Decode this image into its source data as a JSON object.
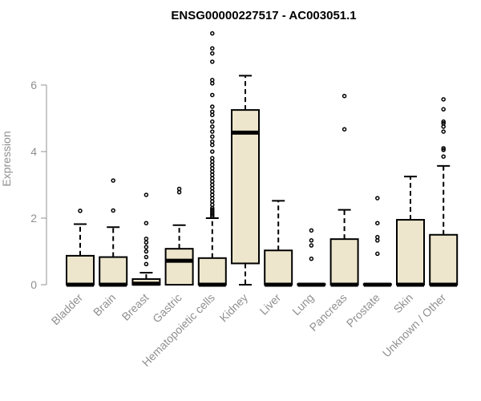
{
  "chart_data": {
    "type": "box",
    "title": "ENSG00000227517 - AC003051.1",
    "xlabel": "",
    "ylabel": "Expression",
    "ylim": [
      0,
      7.5
    ],
    "yticks": [
      0,
      2,
      4,
      6
    ],
    "categories": [
      "Bladder",
      "Brain",
      "Breast",
      "Gastric",
      "Hematopoietic cells",
      "Kidney",
      "Liver",
      "Lung",
      "Pancreas",
      "Prostate",
      "Skin",
      "Unknown / Other"
    ],
    "boxes": [
      {
        "category": "Bladder",
        "q1": 0,
        "median": 0,
        "q3": 0.87,
        "whisker_low": 0,
        "whisker_high": 1.82,
        "outliers": [
          2.22
        ]
      },
      {
        "category": "Brain",
        "q1": 0,
        "median": 0,
        "q3": 0.83,
        "whisker_low": 0,
        "whisker_high": 1.73,
        "outliers": [
          2.23,
          3.13
        ]
      },
      {
        "category": "Breast",
        "q1": 0,
        "median": 0.03,
        "q3": 0.17,
        "whisker_low": 0,
        "whisker_high": 0.36,
        "outliers": [
          0.62,
          0.83,
          1.0,
          1.13,
          1.27,
          1.38,
          1.85,
          2.7
        ]
      },
      {
        "category": "Gastric",
        "q1": 0,
        "median": 0.72,
        "q3": 1.08,
        "whisker_low": 0,
        "whisker_high": 1.79,
        "outliers": [
          2.78,
          2.88
        ]
      },
      {
        "category": "Hematopoietic cells",
        "q1": 0,
        "median": 0,
        "q3": 0.8,
        "whisker_low": 0,
        "whisker_high": 2.0,
        "outliers": [
          2.05,
          2.1,
          2.15,
          2.2,
          2.25,
          2.3,
          2.4,
          2.5,
          2.6,
          2.7,
          2.8,
          2.9,
          3.0,
          3.1,
          3.2,
          3.3,
          3.4,
          3.5,
          3.6,
          3.7,
          3.8,
          4.0,
          4.2,
          4.3,
          4.45,
          4.6,
          4.75,
          4.9,
          5.1,
          5.2,
          5.35,
          5.7,
          6.05,
          6.15,
          6.7,
          6.95,
          7.1,
          7.55
        ]
      },
      {
        "category": "Kidney",
        "q1": 0.64,
        "median": 4.57,
        "q3": 5.25,
        "whisker_low": 0,
        "whisker_high": 6.28,
        "outliers": []
      },
      {
        "category": "Liver",
        "q1": 0,
        "median": 0,
        "q3": 1.03,
        "whisker_low": 0,
        "whisker_high": 2.52,
        "outliers": []
      },
      {
        "category": "Lung",
        "q1": 0,
        "median": 0,
        "q3": 0.02,
        "whisker_low": 0,
        "whisker_high": 0.02,
        "outliers": [
          0.78,
          1.18,
          1.33,
          1.63
        ]
      },
      {
        "category": "Pancreas",
        "q1": 0,
        "median": 0,
        "q3": 1.37,
        "whisker_low": 0,
        "whisker_high": 2.25,
        "outliers": [
          4.67,
          5.67
        ]
      },
      {
        "category": "Prostate",
        "q1": 0,
        "median": 0,
        "q3": 0.02,
        "whisker_low": 0,
        "whisker_high": 0.02,
        "outliers": [
          0.93,
          1.33,
          1.43,
          1.85,
          2.6
        ]
      },
      {
        "category": "Skin",
        "q1": 0,
        "median": 0,
        "q3": 1.95,
        "whisker_low": 0,
        "whisker_high": 3.25,
        "outliers": []
      },
      {
        "category": "Unknown / Other",
        "q1": 0,
        "median": 0,
        "q3": 1.5,
        "whisker_low": 0,
        "whisker_high": 3.57,
        "outliers": [
          3.85,
          4.05,
          4.1,
          4.6,
          4.75,
          4.85,
          4.9,
          5.27,
          5.57
        ]
      }
    ],
    "box_fill": "#ede6cc",
    "axis_color": "#909090",
    "grid": false,
    "legend": "none"
  }
}
